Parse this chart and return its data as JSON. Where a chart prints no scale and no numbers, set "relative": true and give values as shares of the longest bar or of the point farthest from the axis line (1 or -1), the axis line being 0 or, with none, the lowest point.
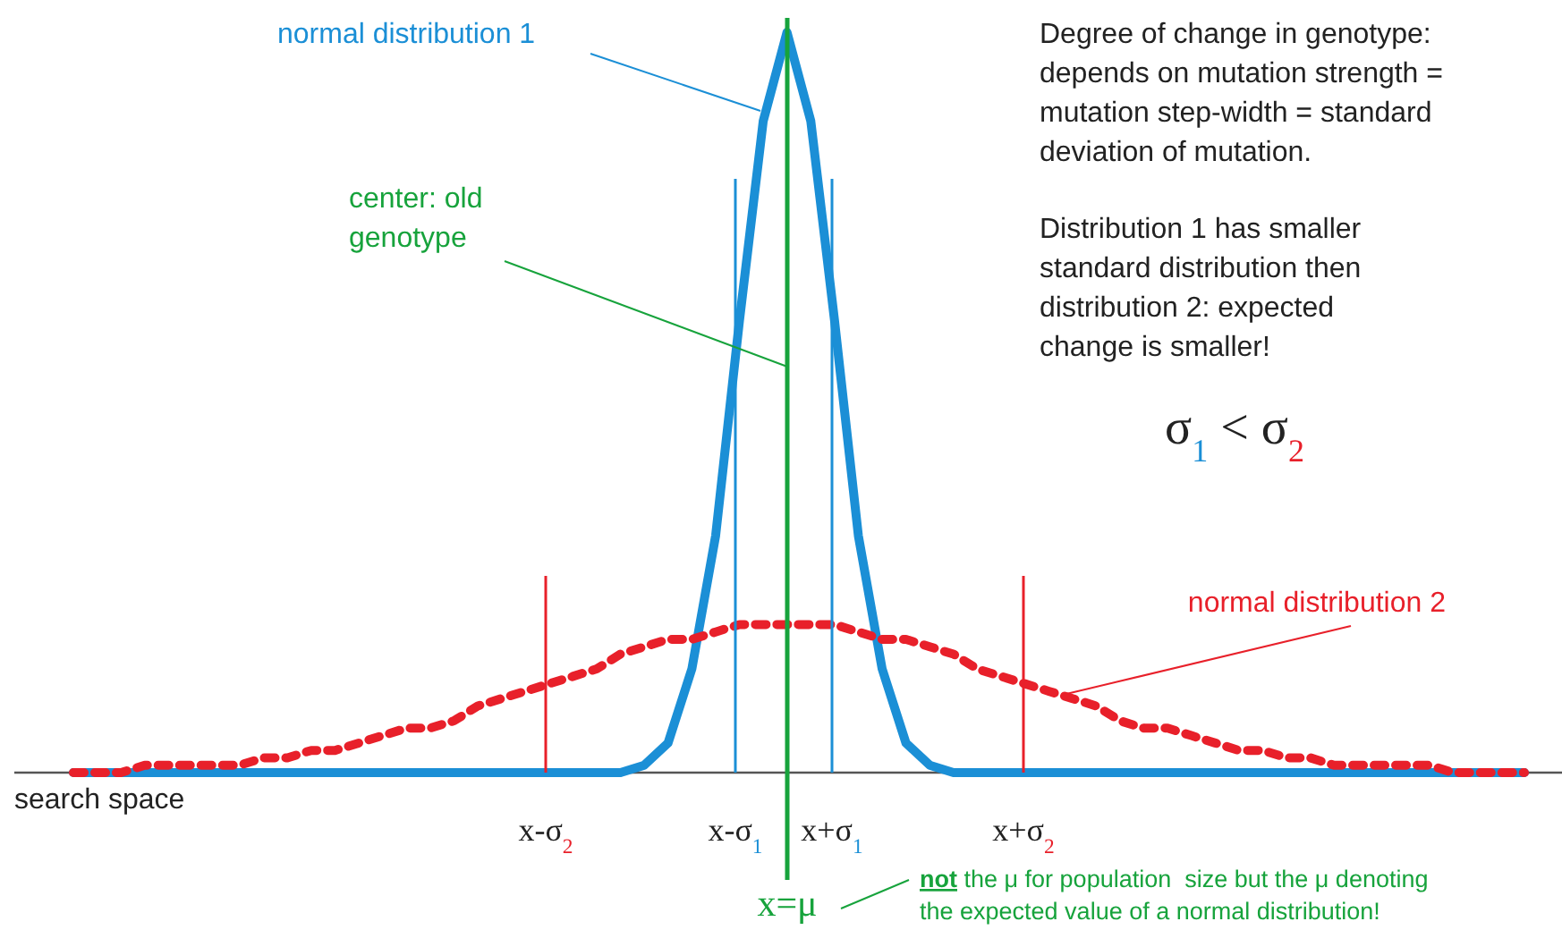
{
  "chart_data": {
    "type": "line",
    "relative": true,
    "xlabel": "search space",
    "categories": [
      null,
      null,
      null,
      null,
      null,
      null,
      null,
      null,
      null,
      null,
      null,
      null,
      null,
      null,
      null,
      null,
      null,
      null,
      null,
      null,
      null,
      null,
      null,
      null,
      null,
      null,
      null,
      null,
      null,
      null,
      null,
      null,
      null,
      null,
      null,
      null,
      null,
      null,
      null,
      null,
      null,
      null,
      null,
      null,
      null,
      null,
      null,
      null,
      null,
      null,
      null,
      null,
      null,
      null,
      null,
      null,
      null,
      null,
      null,
      null,
      null,
      null
    ],
    "series": [
      {
        "name": "normal distribution 1",
        "color": "#1b8fd6",
        "line_style": "solid",
        "values": [
          0,
          0,
          0,
          0,
          0,
          0,
          0,
          0,
          0,
          0,
          0,
          0,
          0,
          0,
          0,
          0,
          0,
          0,
          0,
          0,
          0,
          0,
          0,
          0,
          0.01,
          0.04,
          0.14,
          0.32,
          0.61,
          0.88,
          1,
          0.88,
          0.61,
          0.32,
          0.14,
          0.04,
          0.01,
          0,
          0,
          0,
          0,
          0,
          0,
          0,
          0,
          0,
          0,
          0,
          0,
          0,
          0,
          0,
          0,
          0,
          0,
          0,
          0,
          0,
          0,
          0,
          0,
          0
        ]
      },
      {
        "name": "normal distribution 2",
        "color": "#e8202a",
        "line_style": "dotted",
        "values": [
          0,
          0,
          0,
          0.01,
          0.01,
          0.01,
          0.01,
          0.01,
          0.02,
          0.02,
          0.03,
          0.03,
          0.04,
          0.05,
          0.06,
          0.06,
          0.07,
          0.09,
          0.1,
          0.11,
          0.12,
          0.13,
          0.14,
          0.16,
          0.17,
          0.18,
          0.18,
          0.19,
          0.2,
          0.2,
          0.2,
          0.2,
          0.2,
          0.19,
          0.18,
          0.18,
          0.17,
          0.16,
          0.14,
          0.13,
          0.12,
          0.11,
          0.1,
          0.09,
          0.07,
          0.06,
          0.06,
          0.05,
          0.04,
          0.03,
          0.03,
          0.02,
          0.02,
          0.01,
          0.01,
          0.01,
          0.01,
          0.01,
          0,
          0,
          0,
          0
        ]
      }
    ],
    "annotations": [
      "x-σ$_{2}$",
      "x-σ$_{1}$",
      "x+σ$_{1}$",
      "x+σ$_{2}$",
      "x=μ",
      "center: old genotype",
      "Degree of change in genotype: depends on mutation strength = mutation step-width = standard deviation of mutation.",
      "Distribution 1 has smaller standard distribution then distribution 2: expected change is smaller!",
      "σ$_{1}$ < σ$_{2}$",
      "not the μ for population  size but the μ denoting the expected value of a normal distribution!"
    ]
  }
}
